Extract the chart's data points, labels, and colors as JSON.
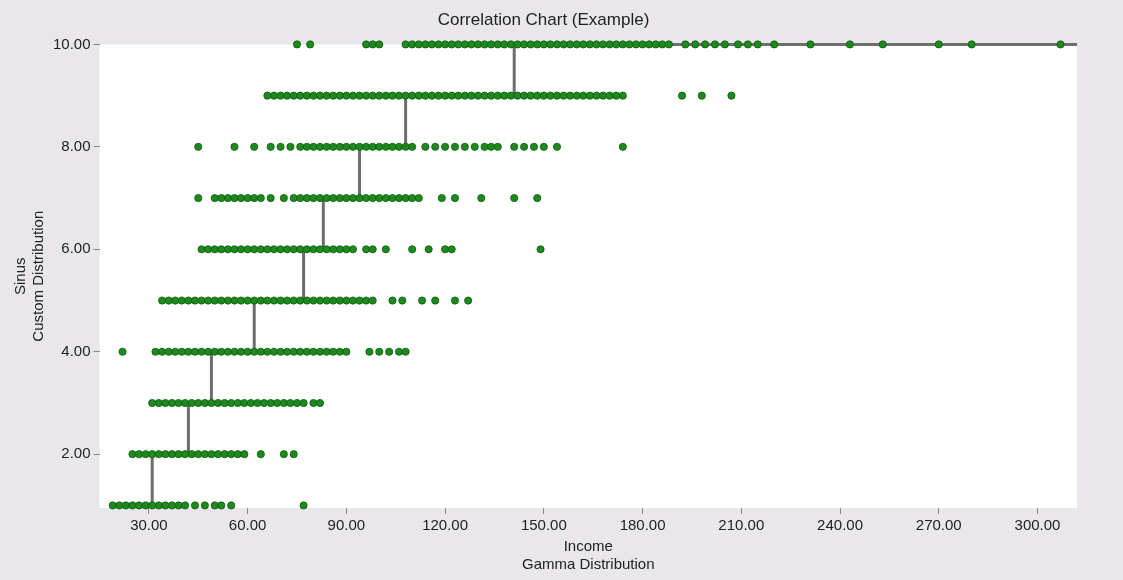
{
  "chart_data": {
    "type": "scatter",
    "title": "Correlation Chart (Example)",
    "xlabel": "Income\nGamma Distribution",
    "ylabel": "Sinus\nCustom Distribution",
    "xlim": [
      15,
      312
    ],
    "xticks": [
      {
        "value": 30,
        "label": "30.00"
      },
      {
        "value": 60,
        "label": "60.00"
      },
      {
        "value": 90,
        "label": "90.00"
      },
      {
        "value": 120,
        "label": "120.00"
      },
      {
        "value": 150,
        "label": "150.00"
      },
      {
        "value": 180,
        "label": "180.00"
      },
      {
        "value": 210,
        "label": "210.00"
      },
      {
        "value": 240,
        "label": "240.00"
      },
      {
        "value": 270,
        "label": "270.00"
      },
      {
        "value": 300,
        "label": "300.00"
      }
    ],
    "ylim": [
      0.95,
      10
    ],
    "yticks": [
      {
        "value": 2,
        "label": "2.00"
      },
      {
        "value": 4,
        "label": "4.00"
      },
      {
        "value": 6,
        "label": "6.00"
      },
      {
        "value": 8,
        "label": "8.00"
      },
      {
        "value": 10,
        "label": "10.00"
      }
    ],
    "grid": false,
    "legend": false,
    "marker": "circle",
    "series": [
      {
        "color": "#1e8a1e",
        "x": [
          19,
          21,
          23,
          25,
          27,
          29,
          31,
          33,
          35,
          37,
          39,
          41,
          44,
          47,
          50,
          52,
          55,
          77,
          25,
          27,
          29,
          31,
          33,
          35,
          37,
          39,
          41,
          43,
          45,
          47,
          49,
          51,
          53,
          55,
          57,
          59,
          64,
          71,
          74,
          31,
          33,
          35,
          37,
          39,
          41,
          43,
          45,
          47,
          49,
          51,
          53,
          55,
          57,
          59,
          61,
          63,
          65,
          67,
          69,
          71,
          73,
          75,
          77,
          80,
          82,
          22,
          32,
          34,
          36,
          38,
          40,
          42,
          44,
          46,
          48,
          50,
          52,
          54,
          56,
          58,
          60,
          62,
          64,
          66,
          68,
          70,
          72,
          74,
          76,
          78,
          80,
          82,
          84,
          86,
          88,
          90,
          97,
          100,
          103,
          106,
          108,
          34,
          36,
          38,
          40,
          42,
          44,
          46,
          48,
          50,
          52,
          54,
          56,
          58,
          60,
          62,
          64,
          66,
          68,
          70,
          72,
          74,
          76,
          78,
          80,
          82,
          84,
          86,
          88,
          90,
          92,
          94,
          96,
          98,
          104,
          107,
          113,
          117,
          123,
          127,
          46,
          48,
          50,
          52,
          54,
          56,
          58,
          60,
          62,
          64,
          66,
          68,
          70,
          72,
          74,
          76,
          78,
          80,
          82,
          84,
          86,
          88,
          90,
          92,
          96,
          98,
          102,
          110,
          115,
          120,
          122,
          149,
          45,
          50,
          52,
          54,
          56,
          58,
          60,
          62,
          64,
          67,
          71,
          74,
          76,
          78,
          80,
          82,
          84,
          86,
          88,
          90,
          92,
          94,
          96,
          98,
          100,
          102,
          104,
          106,
          108,
          110,
          112,
          119,
          123,
          131,
          141,
          148,
          45,
          56,
          62,
          67,
          70,
          73,
          76,
          78,
          80,
          82,
          84,
          86,
          88,
          90,
          92,
          94,
          96,
          98,
          100,
          102,
          104,
          106,
          108,
          110,
          114,
          117,
          120,
          123,
          126,
          129,
          132,
          134,
          136,
          141,
          144,
          147,
          150,
          154,
          174,
          66,
          68,
          70,
          72,
          74,
          76,
          78,
          80,
          82,
          84,
          86,
          88,
          90,
          92,
          94,
          96,
          98,
          100,
          102,
          104,
          106,
          108,
          110,
          112,
          114,
          116,
          118,
          120,
          122,
          124,
          126,
          128,
          130,
          132,
          134,
          136,
          138,
          140,
          142,
          144,
          146,
          148,
          150,
          152,
          154,
          156,
          158,
          160,
          162,
          164,
          166,
          168,
          170,
          172,
          174,
          192,
          198,
          207,
          75,
          79,
          96,
          98,
          100,
          108,
          110,
          112,
          114,
          116,
          118,
          120,
          122,
          124,
          126,
          128,
          130,
          132,
          134,
          136,
          138,
          140,
          142,
          144,
          146,
          148,
          150,
          152,
          154,
          156,
          158,
          160,
          162,
          164,
          166,
          168,
          170,
          172,
          174,
          176,
          178,
          180,
          182,
          184,
          186,
          188,
          193,
          196,
          199,
          202,
          205,
          209,
          212,
          215,
          220,
          231,
          243,
          253,
          270,
          280,
          307
        ],
        "values": [
          1,
          1,
          1,
          1,
          1,
          1,
          1,
          1,
          1,
          1,
          1,
          1,
          1,
          1,
          1,
          1,
          1,
          1,
          2,
          2,
          2,
          2,
          2,
          2,
          2,
          2,
          2,
          2,
          2,
          2,
          2,
          2,
          2,
          2,
          2,
          2,
          2,
          2,
          2,
          3,
          3,
          3,
          3,
          3,
          3,
          3,
          3,
          3,
          3,
          3,
          3,
          3,
          3,
          3,
          3,
          3,
          3,
          3,
          3,
          3,
          3,
          3,
          3,
          3,
          3,
          4,
          4,
          4,
          4,
          4,
          4,
          4,
          4,
          4,
          4,
          4,
          4,
          4,
          4,
          4,
          4,
          4,
          4,
          4,
          4,
          4,
          4,
          4,
          4,
          4,
          4,
          4,
          4,
          4,
          4,
          4,
          4,
          4,
          4,
          4,
          4,
          5,
          5,
          5,
          5,
          5,
          5,
          5,
          5,
          5,
          5,
          5,
          5,
          5,
          5,
          5,
          5,
          5,
          5,
          5,
          5,
          5,
          5,
          5,
          5,
          5,
          5,
          5,
          5,
          5,
          5,
          5,
          5,
          5,
          5,
          5,
          5,
          5,
          5,
          5,
          6,
          6,
          6,
          6,
          6,
          6,
          6,
          6,
          6,
          6,
          6,
          6,
          6,
          6,
          6,
          6,
          6,
          6,
          6,
          6,
          6,
          6,
          6,
          6,
          6,
          6,
          6,
          6,
          6,
          6,
          6,
          6,
          7,
          7,
          7,
          7,
          7,
          7,
          7,
          7,
          7,
          7,
          7,
          7,
          7,
          7,
          7,
          7,
          7,
          7,
          7,
          7,
          7,
          7,
          7,
          7,
          7,
          7,
          7,
          7,
          7,
          7,
          7,
          7,
          7,
          7,
          7,
          7,
          8,
          8,
          8,
          8,
          8,
          8,
          8,
          8,
          8,
          8,
          8,
          8,
          8,
          8,
          8,
          8,
          8,
          8,
          8,
          8,
          8,
          8,
          8,
          8,
          8,
          8,
          8,
          8,
          8,
          8,
          8,
          8,
          8,
          8,
          8,
          8,
          8,
          8,
          8,
          9,
          9,
          9,
          9,
          9,
          9,
          9,
          9,
          9,
          9,
          9,
          9,
          9,
          9,
          9,
          9,
          9,
          9,
          9,
          9,
          9,
          9,
          9,
          9,
          9,
          9,
          9,
          9,
          9,
          9,
          9,
          9,
          9,
          9,
          9,
          9,
          9,
          9,
          9,
          9,
          9,
          9,
          9,
          9,
          9,
          9,
          9,
          9,
          9,
          9,
          9,
          9,
          9,
          9,
          9,
          9,
          9,
          9,
          10,
          10,
          10,
          10,
          10,
          10,
          10,
          10,
          10,
          10,
          10,
          10,
          10,
          10,
          10,
          10,
          10,
          10,
          10,
          10,
          10,
          10,
          10,
          10,
          10,
          10,
          10,
          10,
          10,
          10,
          10,
          10,
          10,
          10,
          10,
          10,
          10,
          10,
          10,
          10,
          10,
          10,
          10,
          10,
          10,
          10,
          10,
          10,
          10,
          10,
          10,
          10,
          10,
          10,
          10,
          10,
          10,
          10,
          10,
          10,
          10
        ]
      },
      {
        "type": "line",
        "color": "#6e6e6e",
        "marker": "none",
        "x": [
          19,
          31,
          31,
          42,
          42,
          49,
          49,
          62,
          62,
          77,
          77,
          83,
          83,
          94,
          94,
          108,
          108,
          141,
          141,
          312
        ],
        "values": [
          1,
          1,
          2,
          2,
          3,
          3,
          4,
          4,
          5,
          5,
          6,
          6,
          7,
          7,
          8,
          8,
          9,
          9,
          10,
          10
        ]
      }
    ]
  }
}
